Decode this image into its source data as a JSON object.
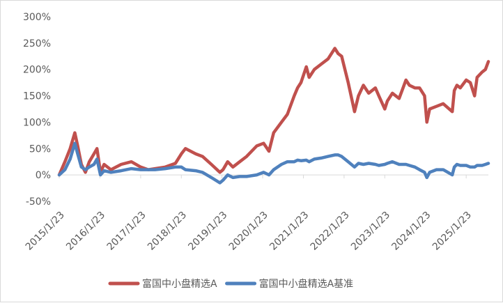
{
  "chart_data": {
    "type": "line",
    "title": "",
    "xlabel": "",
    "ylabel": "",
    "ylim": [
      -50,
      300
    ],
    "y_unit": "%",
    "y_ticks": [
      "300%",
      "250%",
      "200%",
      "150%",
      "100%",
      "50%",
      "0%",
      "-50%"
    ],
    "y_tick_values": [
      300,
      250,
      200,
      150,
      100,
      50,
      0,
      -50
    ],
    "x_ticks": [
      "2015/1/23",
      "2016/1/23",
      "2017/1/23",
      "2018/1/23",
      "2019/1/23",
      "2020/1/23",
      "2021/1/23",
      "2022/1/23",
      "2023/1/23",
      "2024/1/23",
      "2025/1/23"
    ],
    "grid": false,
    "legend_position": "bottom",
    "series": [
      {
        "name": "富国中小盘精选A",
        "color": "#c0504d",
        "x": [
          "2015/1/23",
          "2015/3/15",
          "2015/5/1",
          "2015/6/12",
          "2015/7/8",
          "2015/8/10",
          "2015/9/15",
          "2015/10/20",
          "2015/12/1",
          "2015/12/28",
          "2016/1/28",
          "2016/3/1",
          "2016/5/1",
          "2016/8/1",
          "2016/11/1",
          "2017/1/23",
          "2017/4/1",
          "2017/6/1",
          "2017/9/1",
          "2017/12/1",
          "2018/1/23",
          "2018/3/1",
          "2018/6/1",
          "2018/8/1",
          "2018/10/20",
          "2019/1/4",
          "2019/2/1",
          "2019/3/15",
          "2019/5/1",
          "2019/7/1",
          "2019/9/1",
          "2019/12/1",
          "2020/2/1",
          "2020/3/20",
          "2020/5/1",
          "2020/7/10",
          "2020/9/1",
          "2020/11/1",
          "2020/12/1",
          "2021/1/1",
          "2021/2/18",
          "2021/3/15",
          "2021/5/1",
          "2021/7/1",
          "2021/9/1",
          "2021/11/1",
          "2021/12/1",
          "2022/1/1",
          "2022/3/1",
          "2022/4/27",
          "2022/6/1",
          "2022/7/15",
          "2022/9/1",
          "2022/10/31",
          "2022/12/1",
          "2023/1/23",
          "2023/2/15",
          "2023/4/1",
          "2023/6/1",
          "2023/8/1",
          "2023/9/1",
          "2023/10/20",
          "2023/12/1",
          "2024/1/15",
          "2024/2/5",
          "2024/3/1",
          "2024/5/1",
          "2024/7/1",
          "2024/9/20",
          "2024/10/8",
          "2024/11/1",
          "2024/12/1",
          "2025/1/23",
          "2025/3/1",
          "2025/4/8",
          "2025/5/1",
          "2025/6/15",
          "2025/7/15",
          "2025/8/10"
        ],
        "values": [
          0,
          25,
          50,
          80,
          55,
          20,
          5,
          25,
          40,
          50,
          5,
          20,
          10,
          20,
          25,
          15,
          10,
          12,
          15,
          22,
          40,
          50,
          40,
          35,
          20,
          5,
          10,
          25,
          15,
          25,
          35,
          55,
          60,
          45,
          80,
          100,
          115,
          150,
          165,
          175,
          205,
          185,
          200,
          210,
          220,
          240,
          230,
          225,
          175,
          120,
          150,
          170,
          155,
          165,
          150,
          125,
          140,
          155,
          145,
          180,
          170,
          165,
          165,
          150,
          100,
          125,
          130,
          135,
          120,
          160,
          170,
          165,
          180,
          175,
          150,
          185,
          195,
          200,
          215
        ]
      },
      {
        "name": "富国中小盘精选A基准",
        "color": "#4f81bd",
        "x": [
          "2015/1/23",
          "2015/3/15",
          "2015/5/1",
          "2015/6/12",
          "2015/7/8",
          "2015/8/10",
          "2015/9/15",
          "2015/10/20",
          "2015/12/1",
          "2015/12/28",
          "2016/1/28",
          "2016/3/1",
          "2016/5/1",
          "2016/8/1",
          "2016/11/1",
          "2017/1/23",
          "2017/4/1",
          "2017/6/1",
          "2017/9/1",
          "2017/12/1",
          "2018/1/23",
          "2018/3/1",
          "2018/6/1",
          "2018/8/1",
          "2018/10/20",
          "2019/1/4",
          "2019/2/1",
          "2019/3/15",
          "2019/5/1",
          "2019/7/1",
          "2019/9/1",
          "2019/12/1",
          "2020/2/1",
          "2020/3/20",
          "2020/5/1",
          "2020/7/10",
          "2020/9/1",
          "2020/11/1",
          "2020/12/1",
          "2021/1/1",
          "2021/2/18",
          "2021/3/15",
          "2021/5/1",
          "2021/7/1",
          "2021/9/1",
          "2021/11/1",
          "2021/12/1",
          "2022/1/1",
          "2022/3/1",
          "2022/4/27",
          "2022/6/1",
          "2022/7/15",
          "2022/9/1",
          "2022/10/31",
          "2022/12/1",
          "2023/1/23",
          "2023/2/15",
          "2023/4/1",
          "2023/6/1",
          "2023/8/1",
          "2023/9/1",
          "2023/10/20",
          "2023/12/1",
          "2024/1/15",
          "2024/2/5",
          "2024/3/1",
          "2024/5/1",
          "2024/7/1",
          "2024/9/20",
          "2024/10/8",
          "2024/11/1",
          "2024/12/1",
          "2025/1/23",
          "2025/3/1",
          "2025/4/8",
          "2025/5/1",
          "2025/6/15",
          "2025/7/15",
          "2025/8/10"
        ],
        "values": [
          0,
          10,
          30,
          60,
          40,
          15,
          10,
          15,
          20,
          30,
          0,
          8,
          5,
          8,
          12,
          10,
          10,
          10,
          12,
          15,
          15,
          10,
          8,
          5,
          -5,
          -15,
          -10,
          0,
          -5,
          -3,
          -3,
          0,
          5,
          0,
          10,
          20,
          25,
          25,
          28,
          27,
          28,
          25,
          30,
          32,
          35,
          38,
          38,
          35,
          25,
          15,
          22,
          20,
          22,
          20,
          18,
          20,
          22,
          25,
          20,
          20,
          18,
          15,
          10,
          5,
          -5,
          5,
          10,
          10,
          0,
          15,
          20,
          18,
          18,
          15,
          15,
          18,
          18,
          20,
          22
        ]
      }
    ]
  }
}
